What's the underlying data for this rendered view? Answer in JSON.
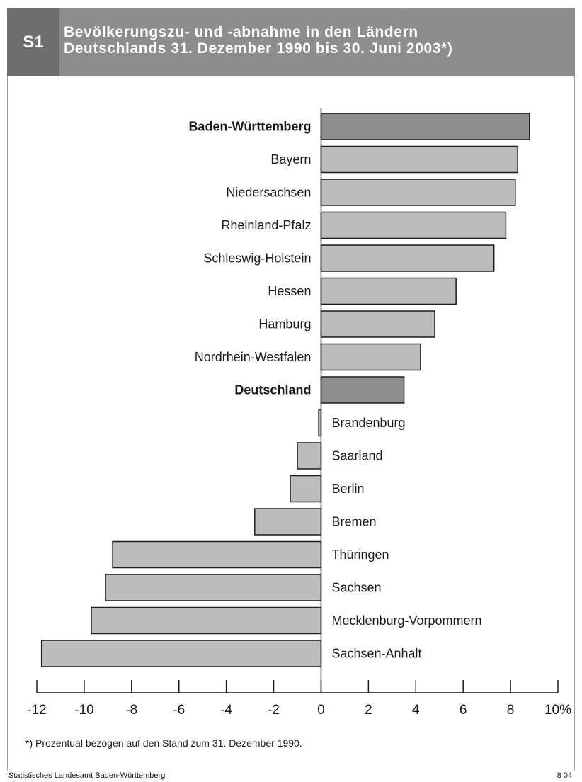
{
  "header": {
    "code": "S1",
    "title_line1": "Bevölkerungszu- und -abnahme in den Ländern",
    "title_line2": "Deutschlands 31. Dezember 1990 bis 30. Juni 2003*)"
  },
  "colors": {
    "bar": "#bcbcbc",
    "highlight": "#8f8f8f",
    "header": "#8d8d8d",
    "header_code": "#6e6e6e"
  },
  "chart_data": {
    "type": "bar",
    "orientation": "horizontal",
    "categories": [
      "Baden-Württemberg",
      "Bayern",
      "Niedersachsen",
      "Rheinland-Pfalz",
      "Schleswig-Holstein",
      "Hessen",
      "Hamburg",
      "Nordrhein-Westfalen",
      "Deutschland",
      "Brandenburg",
      "Saarland",
      "Berlin",
      "Bremen",
      "Thüringen",
      "Sachsen",
      "Mecklenburg-Vorpommern",
      "Sachsen-Anhalt"
    ],
    "values": [
      8.8,
      8.3,
      8.2,
      7.8,
      7.3,
      5.7,
      4.8,
      4.2,
      3.5,
      -0.1,
      -1.0,
      -1.3,
      -2.8,
      -8.8,
      -9.1,
      -9.7,
      -11.8
    ],
    "highlight": [
      "Baden-Württemberg",
      "Deutschland"
    ],
    "xlim": [
      -12,
      10
    ],
    "xticks": [
      "-12",
      "-10",
      "-8",
      "-6",
      "-4",
      "-2",
      "0",
      "2",
      "4",
      "6",
      "8",
      "10%"
    ],
    "xtick_values": [
      -12,
      -10,
      -8,
      -6,
      -4,
      -2,
      0,
      2,
      4,
      6,
      8,
      10
    ],
    "grid": false,
    "legend": "none"
  },
  "footnote": "*) Prozentual bezogen auf den Stand zum 31. Dezember 1990.",
  "source": "Statistisches Landesamt Baden-Württemberg",
  "page_number": "8 04"
}
